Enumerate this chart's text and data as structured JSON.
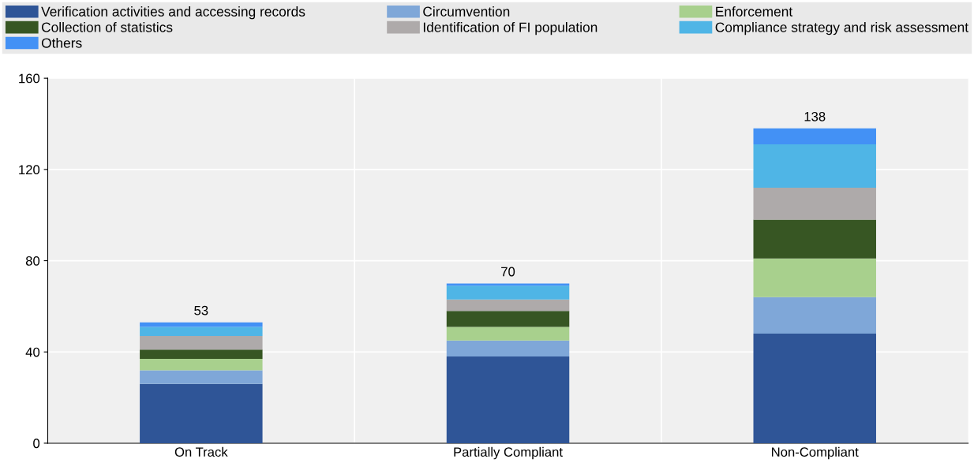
{
  "chart_data": {
    "type": "bar",
    "stacked": true,
    "categories": [
      "On Track",
      "Partially Compliant",
      "Non-Compliant"
    ],
    "series": [
      {
        "name": "Verification activities and accessing records",
        "color": "#2f5597",
        "values": [
          26,
          38,
          48
        ]
      },
      {
        "name": "Circumvention",
        "color": "#7fa7d8",
        "values": [
          6,
          7,
          16
        ]
      },
      {
        "name": "Enforcement",
        "color": "#a8d08d",
        "values": [
          5,
          6,
          17
        ]
      },
      {
        "name": "Collection of statistics",
        "color": "#375623",
        "values": [
          4,
          7,
          17
        ]
      },
      {
        "name": "Identification of FI population",
        "color": "#aeaaaa",
        "values": [
          6,
          5,
          14
        ]
      },
      {
        "name": "Compliance strategy and risk assessment",
        "color": "#4fb5e6",
        "values": [
          4,
          6,
          19
        ]
      },
      {
        "name": "Others",
        "color": "#4391f5",
        "values": [
          2,
          1,
          7
        ]
      }
    ],
    "totals": [
      "53",
      "70",
      "138"
    ],
    "ylim": [
      0,
      160
    ],
    "yticks": [
      0,
      40,
      80,
      120,
      160
    ],
    "grid": true,
    "legend": "top"
  }
}
